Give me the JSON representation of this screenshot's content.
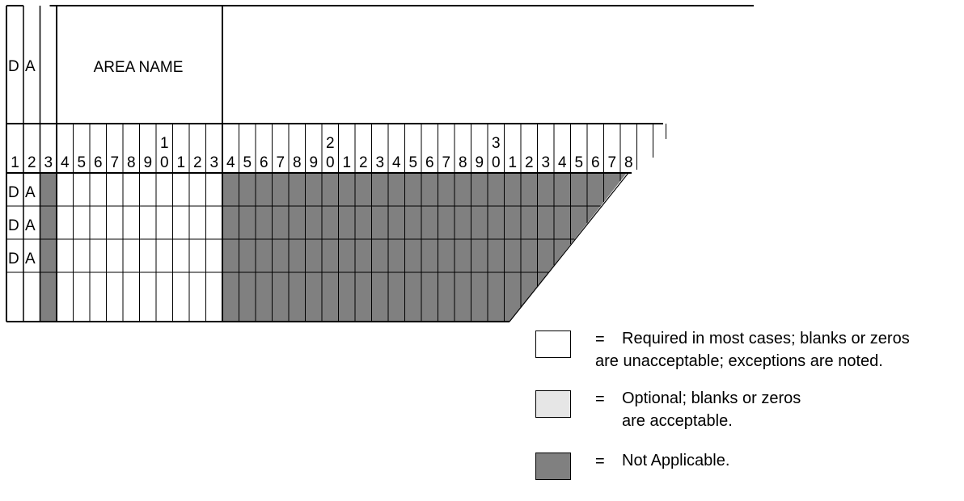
{
  "header": {
    "col1_label": "D",
    "col2_label": "A",
    "area_name_label": "AREA NAME"
  },
  "column_numbers": [
    {
      "top": "",
      "bottom": "1"
    },
    {
      "top": "",
      "bottom": "2"
    },
    {
      "top": "",
      "bottom": "3"
    },
    {
      "top": "",
      "bottom": "4"
    },
    {
      "top": "",
      "bottom": "5"
    },
    {
      "top": "",
      "bottom": "6"
    },
    {
      "top": "",
      "bottom": "7"
    },
    {
      "top": "",
      "bottom": "8"
    },
    {
      "top": "",
      "bottom": "9"
    },
    {
      "top": "1",
      "bottom": "0"
    },
    {
      "top": "",
      "bottom": "1"
    },
    {
      "top": "",
      "bottom": "2"
    },
    {
      "top": "",
      "bottom": "3"
    },
    {
      "top": "",
      "bottom": "4"
    },
    {
      "top": "",
      "bottom": "5"
    },
    {
      "top": "",
      "bottom": "6"
    },
    {
      "top": "",
      "bottom": "7"
    },
    {
      "top": "",
      "bottom": "8"
    },
    {
      "top": "",
      "bottom": "9"
    },
    {
      "top": "2",
      "bottom": "0"
    },
    {
      "top": "",
      "bottom": "1"
    },
    {
      "top": "",
      "bottom": "2"
    },
    {
      "top": "",
      "bottom": "3"
    },
    {
      "top": "",
      "bottom": "4"
    },
    {
      "top": "",
      "bottom": "5"
    },
    {
      "top": "",
      "bottom": "6"
    },
    {
      "top": "",
      "bottom": "7"
    },
    {
      "top": "",
      "bottom": "8"
    },
    {
      "top": "",
      "bottom": "9"
    },
    {
      "top": "3",
      "bottom": "0"
    },
    {
      "top": "",
      "bottom": "1"
    },
    {
      "top": "",
      "bottom": "2"
    },
    {
      "top": "",
      "bottom": "3"
    },
    {
      "top": "",
      "bottom": "4"
    },
    {
      "top": "",
      "bottom": "5"
    },
    {
      "top": "",
      "bottom": "6"
    },
    {
      "top": "",
      "bottom": "7"
    },
    {
      "top": "",
      "bottom": "8"
    }
  ],
  "data_rows": [
    {
      "c1": "D",
      "c2": "A"
    },
    {
      "c1": "D",
      "c2": "A"
    },
    {
      "c1": "D",
      "c2": "A"
    },
    {
      "c1": "",
      "c2": ""
    }
  ],
  "legend": [
    {
      "color": "#ffffff",
      "symbol": "=",
      "lines": [
        "Required in most cases; blanks or zeros",
        "are unacceptable; exceptions are noted."
      ]
    },
    {
      "color": "#e6e6e6",
      "symbol": "=",
      "lines": [
        "Optional; blanks or zeros",
        "are acceptable."
      ]
    },
    {
      "color": "#808080",
      "symbol": "=",
      "lines": [
        "Not Applicable."
      ]
    }
  ],
  "colors": {
    "not_applicable": "#808080",
    "optional": "#e6e6e6",
    "required": "#ffffff",
    "line": "#000000"
  }
}
